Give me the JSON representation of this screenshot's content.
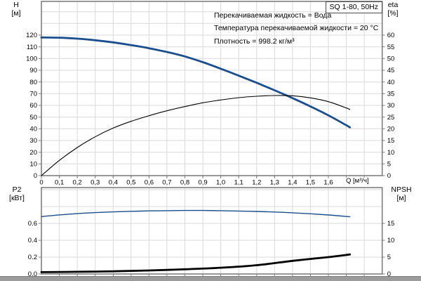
{
  "panel_title": "SQ 1-80, 50Hz",
  "info_lines": [
    "Перекачиваемая жидкость = Вода",
    "Температура перекачиваемой жидкости = 20 °C",
    "Плотность = 998.2 кг/м³"
  ],
  "colors": {
    "curve_blue": "#1b4e8e",
    "curve_black": "#000000",
    "grid": "#d9d9d9",
    "axis": "#7f7f7f",
    "text": "#000000",
    "status_strip": "#9b9b9b"
  },
  "chart_data": [
    {
      "type": "line",
      "title": "SQ 1-80, 50Hz",
      "x_axis": {
        "label": "Q [м³/ч]",
        "min": 0,
        "max": 1.9,
        "step": 0.1,
        "ticks": [
          {
            "v": 0,
            "label": "0"
          },
          {
            "v": 0.1,
            "label": "0,1"
          },
          {
            "v": 0.2,
            "label": "0,2"
          },
          {
            "v": 0.3,
            "label": "0,3"
          },
          {
            "v": 0.4,
            "label": "0,4"
          },
          {
            "v": 0.5,
            "label": "0,5"
          },
          {
            "v": 0.6,
            "label": "0,6"
          },
          {
            "v": 0.7,
            "label": "0,7"
          },
          {
            "v": 0.8,
            "label": "0,8"
          },
          {
            "v": 0.9,
            "label": "0,9"
          },
          {
            "v": 1.0,
            "label": "1,0"
          },
          {
            "v": 1.1,
            "label": "1,1"
          },
          {
            "v": 1.2,
            "label": "1,2"
          },
          {
            "v": 1.3,
            "label": "1,3"
          },
          {
            "v": 1.4,
            "label": "1,4"
          },
          {
            "v": 1.5,
            "label": "1,5"
          },
          {
            "v": 1.6,
            "label": "1,6"
          }
        ]
      },
      "left_axis": {
        "name": "H",
        "unit": "[м]",
        "min": 0,
        "max": 148.8,
        "step": 10,
        "ticks": [
          {
            "v": 0,
            "label": "0"
          },
          {
            "v": 10,
            "label": "10"
          },
          {
            "v": 20,
            "label": "20"
          },
          {
            "v": 30,
            "label": "30"
          },
          {
            "v": 40,
            "label": "40"
          },
          {
            "v": 50,
            "label": "50"
          },
          {
            "v": 60,
            "label": "60"
          },
          {
            "v": 70,
            "label": "70"
          },
          {
            "v": 80,
            "label": "80"
          },
          {
            "v": 90,
            "label": "90"
          },
          {
            "v": 100,
            "label": "100"
          },
          {
            "v": 110,
            "label": "110"
          },
          {
            "v": 120,
            "label": "120"
          }
        ]
      },
      "right_axis": {
        "name": "eta",
        "unit": "[%]",
        "min": 0,
        "max": 74.4,
        "step": 5,
        "ticks": [
          {
            "v": 0,
            "label": "0"
          },
          {
            "v": 5,
            "label": "5"
          },
          {
            "v": 10,
            "label": "10"
          },
          {
            "v": 15,
            "label": "15"
          },
          {
            "v": 20,
            "label": "20"
          },
          {
            "v": 25,
            "label": "25"
          },
          {
            "v": 30,
            "label": "30"
          },
          {
            "v": 35,
            "label": "35"
          },
          {
            "v": 40,
            "label": "40"
          },
          {
            "v": 45,
            "label": "45"
          },
          {
            "v": 50,
            "label": "50"
          },
          {
            "v": 55,
            "label": "55"
          },
          {
            "v": 60,
            "label": "60"
          }
        ]
      },
      "series": [
        {
          "name": "H(Q) head curve",
          "axis": "left",
          "color": "#1b4e8e",
          "width": 2.8,
          "points": [
            [
              0,
              118
            ],
            [
              0.1,
              117.8
            ],
            [
              0.2,
              117
            ],
            [
              0.3,
              115.6
            ],
            [
              0.4,
              113.8
            ],
            [
              0.5,
              111.5
            ],
            [
              0.6,
              108.8
            ],
            [
              0.7,
              105.6
            ],
            [
              0.8,
              101.8
            ],
            [
              0.9,
              96.9
            ],
            [
              1.0,
              91.3
            ],
            [
              1.1,
              85.4
            ],
            [
              1.2,
              79.3
            ],
            [
              1.3,
              72.9
            ],
            [
              1.4,
              66.2
            ],
            [
              1.5,
              59.1
            ],
            [
              1.6,
              51.5
            ],
            [
              1.7,
              43.0
            ],
            [
              1.72,
              41.2
            ]
          ]
        },
        {
          "name": "eta(Q) efficiency curve",
          "axis": "right",
          "color": "#000000",
          "width": 1.1,
          "points": [
            [
              0,
              0
            ],
            [
              0.1,
              6.5
            ],
            [
              0.2,
              12
            ],
            [
              0.3,
              16.6
            ],
            [
              0.4,
              20.3
            ],
            [
              0.5,
              23.2
            ],
            [
              0.6,
              25.6
            ],
            [
              0.7,
              27.7
            ],
            [
              0.8,
              29.5
            ],
            [
              0.9,
              31.1
            ],
            [
              1.0,
              32.3
            ],
            [
              1.1,
              33.3
            ],
            [
              1.2,
              33.9
            ],
            [
              1.3,
              34.2
            ],
            [
              1.4,
              34.1
            ],
            [
              1.5,
              33.2
            ],
            [
              1.6,
              31.6
            ],
            [
              1.7,
              28.9
            ],
            [
              1.72,
              28.2
            ]
          ]
        }
      ]
    },
    {
      "type": "line",
      "x_axis": {
        "label": "",
        "min": 0,
        "max": 1.9,
        "step": 0.1,
        "ticks": []
      },
      "left_axis": {
        "name": "P2",
        "unit": "[кВт]",
        "min": 0,
        "max": 1.025,
        "step": 0.2,
        "ticks": [
          {
            "v": 0,
            "label": "0.0"
          },
          {
            "v": 0.2,
            "label": "0.2"
          },
          {
            "v": 0.4,
            "label": "0.4"
          },
          {
            "v": 0.6,
            "label": "0.6"
          }
        ]
      },
      "right_axis": {
        "name": "NPSH",
        "unit": "[м]",
        "min": 0,
        "max": 25.625,
        "step": 5,
        "ticks": [
          {
            "v": 0,
            "label": "0"
          },
          {
            "v": 5,
            "label": "5"
          },
          {
            "v": 10,
            "label": "10"
          },
          {
            "v": 15,
            "label": "15"
          }
        ]
      },
      "series": [
        {
          "name": "P2(Q) shaft power curve",
          "axis": "left",
          "color": "#1b4e8e",
          "width": 1.4,
          "points": [
            [
              0,
              0.681
            ],
            [
              0.1,
              0.701
            ],
            [
              0.2,
              0.716
            ],
            [
              0.3,
              0.728
            ],
            [
              0.4,
              0.737
            ],
            [
              0.5,
              0.743
            ],
            [
              0.6,
              0.748
            ],
            [
              0.7,
              0.751
            ],
            [
              0.8,
              0.753
            ],
            [
              0.9,
              0.753
            ],
            [
              1.0,
              0.751
            ],
            [
              1.1,
              0.747
            ],
            [
              1.2,
              0.742
            ],
            [
              1.3,
              0.735
            ],
            [
              1.4,
              0.726
            ],
            [
              1.5,
              0.714
            ],
            [
              1.6,
              0.7
            ],
            [
              1.7,
              0.682
            ],
            [
              1.72,
              0.678
            ]
          ]
        },
        {
          "name": "NPSH(Q) curve",
          "axis": "right",
          "color": "#000000",
          "width": 2.8,
          "points": [
            [
              0,
              0.55
            ],
            [
              0.2,
              0.65
            ],
            [
              0.4,
              0.8
            ],
            [
              0.6,
              1.05
            ],
            [
              0.8,
              1.4
            ],
            [
              1.0,
              1.85
            ],
            [
              1.2,
              2.6
            ],
            [
              1.4,
              3.9
            ],
            [
              1.6,
              5.0
            ],
            [
              1.72,
              5.8
            ]
          ]
        }
      ]
    }
  ]
}
